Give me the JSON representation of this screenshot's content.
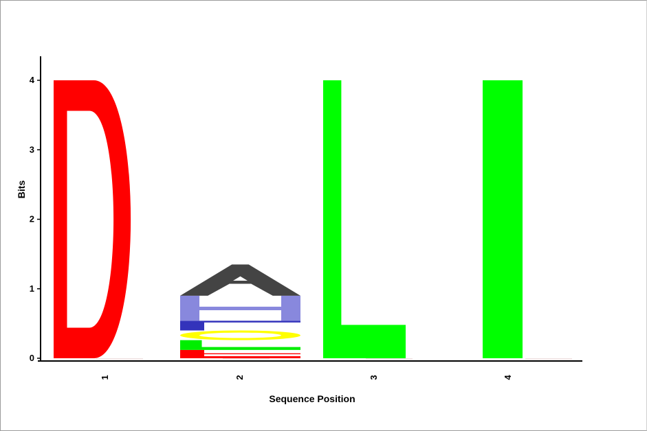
{
  "chart_data": {
    "type": "sequence-logo",
    "xlabel": "Sequence Position",
    "ylabel": "Bits",
    "ylim": [
      0,
      4
    ],
    "yticks": [
      0,
      1,
      2,
      3,
      4
    ],
    "positions": [
      {
        "label": "1",
        "letters": [
          {
            "letter": "D",
            "bits": 4.0,
            "color": "#ff0000"
          }
        ]
      },
      {
        "label": "2",
        "letters": [
          {
            "letter": "E",
            "bits": 0.12,
            "color": "#ff0000"
          },
          {
            "letter": "G",
            "bits": 0.14,
            "color": "#00ee00"
          },
          {
            "letter": "S",
            "bits": 0.14,
            "color": "#ffff00"
          },
          {
            "letter": "T",
            "bits": 0.14,
            "color": "#3333bb"
          },
          {
            "letter": "H",
            "bits": 0.36,
            "color": "#8888dd"
          },
          {
            "letter": "A",
            "bits": 0.45,
            "color": "#444444"
          }
        ]
      },
      {
        "label": "3",
        "letters": [
          {
            "letter": "L",
            "bits": 4.0,
            "color": "#00ff00"
          }
        ]
      },
      {
        "label": "4",
        "letters": [
          {
            "letter": "I",
            "bits": 4.0,
            "color": "#00ff00"
          }
        ]
      }
    ]
  }
}
